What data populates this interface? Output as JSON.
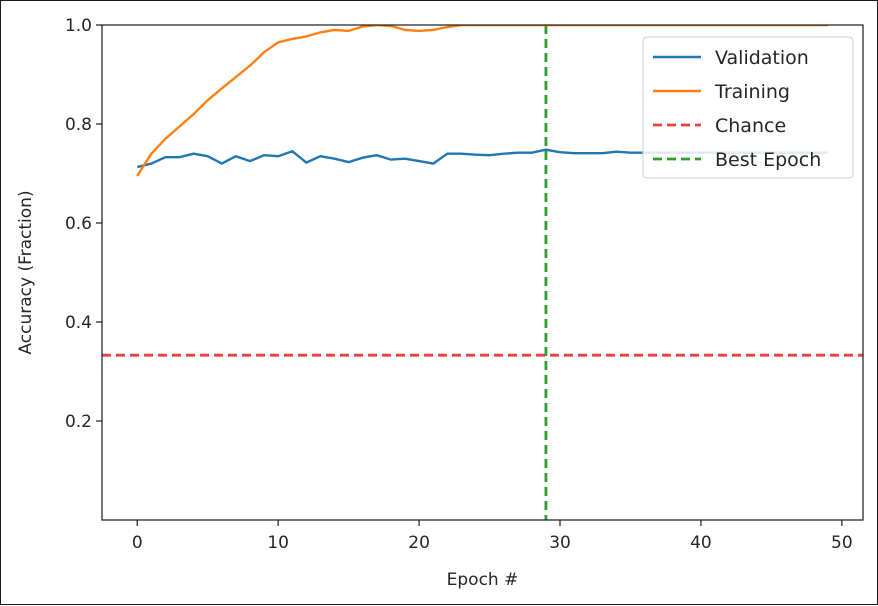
{
  "chart_data": {
    "type": "line",
    "title": "",
    "xlabel": "Epoch #",
    "ylabel": "Accuracy (Fraction)",
    "xlim": [
      -2.5,
      51.5
    ],
    "ylim": [
      0.0,
      1.0
    ],
    "xticks": [
      0,
      10,
      20,
      30,
      40,
      50
    ],
    "xtick_labels": [
      "0",
      "10",
      "20",
      "30",
      "40",
      "50"
    ],
    "yticks": [
      0.2,
      0.4,
      0.6,
      0.8,
      1.0
    ],
    "ytick_labels": [
      "0.2",
      "0.4",
      "0.6",
      "0.8",
      "1.0"
    ],
    "grid": false,
    "legend_position": "top-right",
    "x": [
      0,
      1,
      2,
      3,
      4,
      5,
      6,
      7,
      8,
      9,
      10,
      11,
      12,
      13,
      14,
      15,
      16,
      17,
      18,
      19,
      20,
      21,
      22,
      23,
      24,
      25,
      26,
      27,
      28,
      29,
      30,
      31,
      32,
      33,
      34,
      35,
      36,
      37,
      38,
      39,
      40,
      41,
      42,
      43,
      44,
      45,
      46,
      47,
      48,
      49
    ],
    "series": [
      {
        "name": "Validation",
        "color": "#1f77b4",
        "style": "solid",
        "values": [
          0.713,
          0.72,
          0.733,
          0.733,
          0.74,
          0.735,
          0.72,
          0.735,
          0.725,
          0.737,
          0.735,
          0.745,
          0.722,
          0.735,
          0.73,
          0.723,
          0.732,
          0.737,
          0.728,
          0.73,
          0.725,
          0.72,
          0.74,
          0.74,
          0.738,
          0.737,
          0.74,
          0.742,
          0.742,
          0.748,
          0.743,
          0.741,
          0.741,
          0.741,
          0.744,
          0.742,
          0.742,
          0.742,
          0.742,
          0.742,
          0.742,
          0.742,
          0.742,
          0.742,
          0.742,
          0.742,
          0.742,
          0.742,
          0.742,
          0.742
        ]
      },
      {
        "name": "Training",
        "color": "#ff7f0e",
        "style": "solid",
        "values": [
          0.695,
          0.74,
          0.77,
          0.795,
          0.82,
          0.848,
          0.872,
          0.895,
          0.918,
          0.945,
          0.965,
          0.972,
          0.977,
          0.985,
          0.99,
          0.988,
          0.997,
          1.0,
          0.998,
          0.99,
          0.988,
          0.99,
          0.996,
          1.0,
          1.0,
          1.0,
          1.0,
          1.0,
          1.0,
          1.0,
          1.0,
          1.0,
          1.0,
          1.0,
          1.0,
          1.0,
          1.0,
          1.0,
          1.0,
          1.0,
          1.0,
          1.0,
          1.0,
          1.0,
          1.0,
          1.0,
          1.0,
          1.0,
          1.0,
          1.0
        ]
      }
    ],
    "reference_lines": [
      {
        "name": "Chance",
        "orientation": "horizontal",
        "value": 0.333,
        "color": "#e84040",
        "style": "dashed"
      },
      {
        "name": "Best Epoch",
        "orientation": "vertical",
        "value": 29,
        "color": "#2ca02c",
        "style": "dashed"
      }
    ],
    "legend": [
      "Validation",
      "Training",
      "Chance",
      "Best Epoch"
    ]
  }
}
